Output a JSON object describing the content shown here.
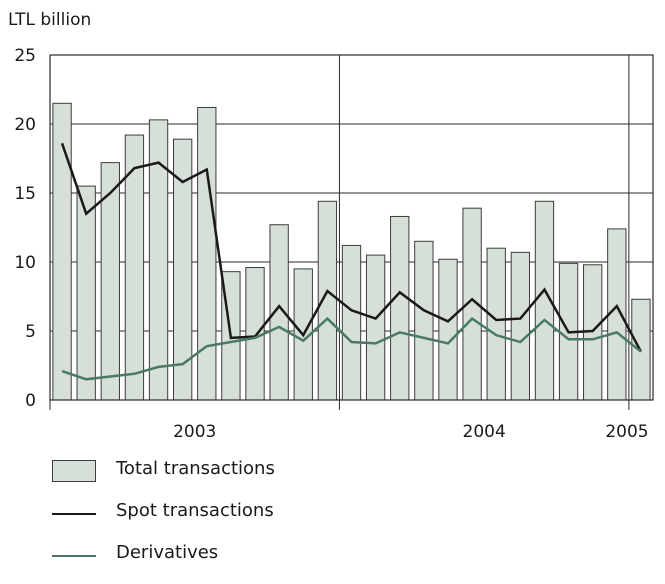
{
  "chart_data": {
    "type": "bar",
    "ylabel": "LTL billion",
    "ylim": [
      0,
      25
    ],
    "yticks": [
      0,
      5,
      10,
      15,
      20,
      25
    ],
    "grid": true,
    "legend_position": "bottom",
    "year_labels": [
      {
        "label": "2003",
        "center_index": 6
      },
      {
        "label": "2004",
        "center_index": 18
      },
      {
        "label": "2005",
        "center_index": 24
      }
    ],
    "year_boundaries": [
      12,
      24
    ],
    "series": [
      {
        "name": "Total transactions",
        "kind": "bar",
        "color": "#d6e0d9",
        "values": [
          21.5,
          15.5,
          17.2,
          19.2,
          20.3,
          18.9,
          21.2,
          9.3,
          9.6,
          12.7,
          9.5,
          14.4,
          11.2,
          10.5,
          13.3,
          11.5,
          10.2,
          13.9,
          11.0,
          10.7,
          14.4,
          9.9,
          9.8,
          12.4,
          7.3
        ]
      },
      {
        "name": "Spot transactions",
        "kind": "line",
        "color": "#1a1a1a",
        "values": [
          18.6,
          13.5,
          15.0,
          16.8,
          17.2,
          15.8,
          16.7,
          4.5,
          4.6,
          6.8,
          4.7,
          7.9,
          6.5,
          5.9,
          7.8,
          6.5,
          5.7,
          7.3,
          5.8,
          5.9,
          8.0,
          4.9,
          5.0,
          6.8,
          3.5
        ]
      },
      {
        "name": "Derivatives",
        "kind": "line",
        "color": "#4a7a63",
        "values": [
          2.1,
          1.5,
          1.7,
          1.9,
          2.4,
          2.6,
          3.9,
          4.2,
          4.5,
          5.3,
          4.3,
          5.9,
          4.2,
          4.1,
          4.9,
          4.5,
          4.1,
          5.9,
          4.7,
          4.2,
          5.8,
          4.4,
          4.4,
          4.9,
          3.5
        ]
      }
    ]
  }
}
